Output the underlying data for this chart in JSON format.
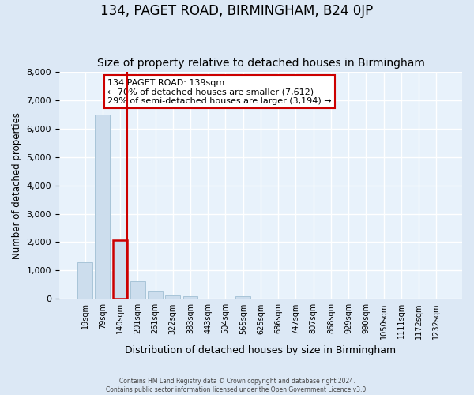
{
  "title": "134, PAGET ROAD, BIRMINGHAM, B24 0JP",
  "subtitle": "Size of property relative to detached houses in Birmingham",
  "xlabel": "Distribution of detached houses by size in Birmingham",
  "ylabel": "Number of detached properties",
  "bin_labels": [
    "19sqm",
    "79sqm",
    "140sqm",
    "201sqm",
    "261sqm",
    "322sqm",
    "383sqm",
    "443sqm",
    "504sqm",
    "565sqm",
    "625sqm",
    "686sqm",
    "747sqm",
    "807sqm",
    "868sqm",
    "929sqm",
    "990sqm",
    "1050sqm",
    "1111sqm",
    "1172sqm",
    "1232sqm"
  ],
  "bar_heights": [
    1300,
    6500,
    2080,
    630,
    295,
    130,
    80,
    0,
    0,
    100,
    0,
    0,
    0,
    0,
    0,
    0,
    0,
    0,
    0,
    0,
    0
  ],
  "bar_color": "#ccdded",
  "bar_edge_color": "#a8c4d8",
  "highlight_bar_index": 2,
  "highlight_color": "#cc0000",
  "ylim": [
    0,
    8000
  ],
  "yticks": [
    0,
    1000,
    2000,
    3000,
    4000,
    5000,
    6000,
    7000,
    8000
  ],
  "annotation_box_title": "134 PAGET ROAD: 139sqm",
  "annotation_line1": "← 70% of detached houses are smaller (7,612)",
  "annotation_line2": "29% of semi-detached houses are larger (3,194) →",
  "footer1": "Contains HM Land Registry data © Crown copyright and database right 2024.",
  "footer2": "Contains public sector information licensed under the Open Government Licence v3.0.",
  "bg_color": "#dce8f5",
  "plot_bg_color": "#e8f2fb",
  "grid_color": "#ffffff",
  "title_fontsize": 12,
  "subtitle_fontsize": 10
}
